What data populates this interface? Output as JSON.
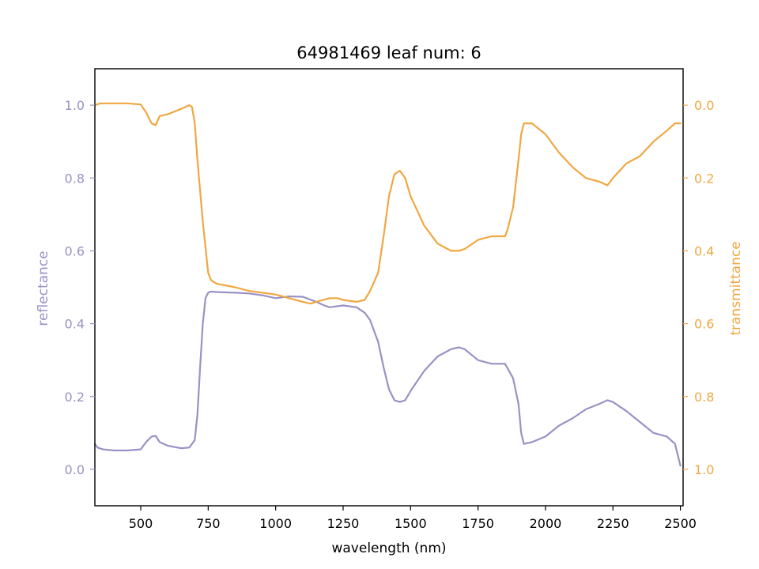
{
  "chart_data": {
    "type": "line",
    "title": "64981469 leaf num: 6",
    "xlabel": "wavelength (nm)",
    "ylabel_left": "reflectance",
    "ylabel_right": "transmittance",
    "xlim": [
      330,
      2510
    ],
    "ylim_left": [
      -0.1,
      1.1
    ],
    "ylim_right_inverted": [
      1.1,
      -0.1
    ],
    "x_ticks": [
      500,
      750,
      1000,
      1250,
      1500,
      1750,
      2000,
      2250,
      2500
    ],
    "y_ticks_left": [
      0.0,
      0.2,
      0.4,
      0.6,
      0.8,
      1.0
    ],
    "y_ticks_right": [
      0.0,
      0.2,
      0.4,
      0.6,
      0.8,
      1.0
    ],
    "grid": false,
    "series": [
      {
        "axis": "left",
        "color": "#9892c5",
        "x": [
          330,
          340,
          360,
          400,
          450,
          500,
          520,
          540,
          555,
          570,
          600,
          650,
          680,
          700,
          710,
          720,
          730,
          740,
          750,
          760,
          780,
          850,
          900,
          950,
          1000,
          1050,
          1100,
          1150,
          1180,
          1200,
          1250,
          1300,
          1330,
          1350,
          1380,
          1400,
          1420,
          1440,
          1460,
          1480,
          1500,
          1550,
          1600,
          1650,
          1680,
          1700,
          1750,
          1800,
          1850,
          1880,
          1900,
          1910,
          1920,
          1950,
          2000,
          2050,
          2100,
          2150,
          2200,
          2230,
          2250,
          2300,
          2350,
          2400,
          2450,
          2480,
          2500
        ],
        "values": [
          0.07,
          0.06,
          0.055,
          0.052,
          0.052,
          0.055,
          0.075,
          0.09,
          0.092,
          0.075,
          0.065,
          0.058,
          0.06,
          0.08,
          0.15,
          0.28,
          0.4,
          0.47,
          0.485,
          0.488,
          0.487,
          0.485,
          0.483,
          0.478,
          0.47,
          0.475,
          0.474,
          0.46,
          0.45,
          0.445,
          0.45,
          0.445,
          0.43,
          0.41,
          0.35,
          0.28,
          0.22,
          0.19,
          0.185,
          0.19,
          0.215,
          0.27,
          0.31,
          0.33,
          0.335,
          0.33,
          0.3,
          0.29,
          0.29,
          0.25,
          0.18,
          0.1,
          0.07,
          0.075,
          0.09,
          0.12,
          0.14,
          0.165,
          0.18,
          0.19,
          0.185,
          0.16,
          0.13,
          0.1,
          0.09,
          0.07,
          0.01
        ]
      },
      {
        "axis": "right",
        "color": "#f0a742",
        "x": [
          330,
          350,
          400,
          450,
          500,
          520,
          540,
          555,
          570,
          600,
          650,
          680,
          690,
          700,
          710,
          730,
          750,
          760,
          780,
          850,
          900,
          950,
          1000,
          1050,
          1100,
          1130,
          1150,
          1200,
          1230,
          1250,
          1300,
          1330,
          1350,
          1380,
          1400,
          1420,
          1440,
          1460,
          1480,
          1500,
          1550,
          1600,
          1650,
          1680,
          1700,
          1750,
          1800,
          1850,
          1860,
          1880,
          1900,
          1910,
          1920,
          1950,
          2000,
          2050,
          2100,
          2150,
          2200,
          2230,
          2250,
          2300,
          2350,
          2400,
          2450,
          2480,
          2500
        ],
        "values": [
          0.0,
          -0.005,
          -0.005,
          -0.005,
          -0.002,
          0.02,
          0.05,
          0.055,
          0.03,
          0.025,
          0.01,
          0.0,
          0.005,
          0.05,
          0.15,
          0.32,
          0.46,
          0.48,
          0.49,
          0.5,
          0.51,
          0.515,
          0.52,
          0.53,
          0.54,
          0.545,
          0.54,
          0.53,
          0.53,
          0.535,
          0.54,
          0.535,
          0.51,
          0.46,
          0.36,
          0.25,
          0.19,
          0.18,
          0.2,
          0.25,
          0.33,
          0.38,
          0.4,
          0.4,
          0.395,
          0.37,
          0.36,
          0.36,
          0.34,
          0.28,
          0.15,
          0.08,
          0.05,
          0.05,
          0.08,
          0.13,
          0.17,
          0.2,
          0.21,
          0.22,
          0.2,
          0.16,
          0.14,
          0.1,
          0.07,
          0.05,
          0.05
        ]
      }
    ]
  }
}
